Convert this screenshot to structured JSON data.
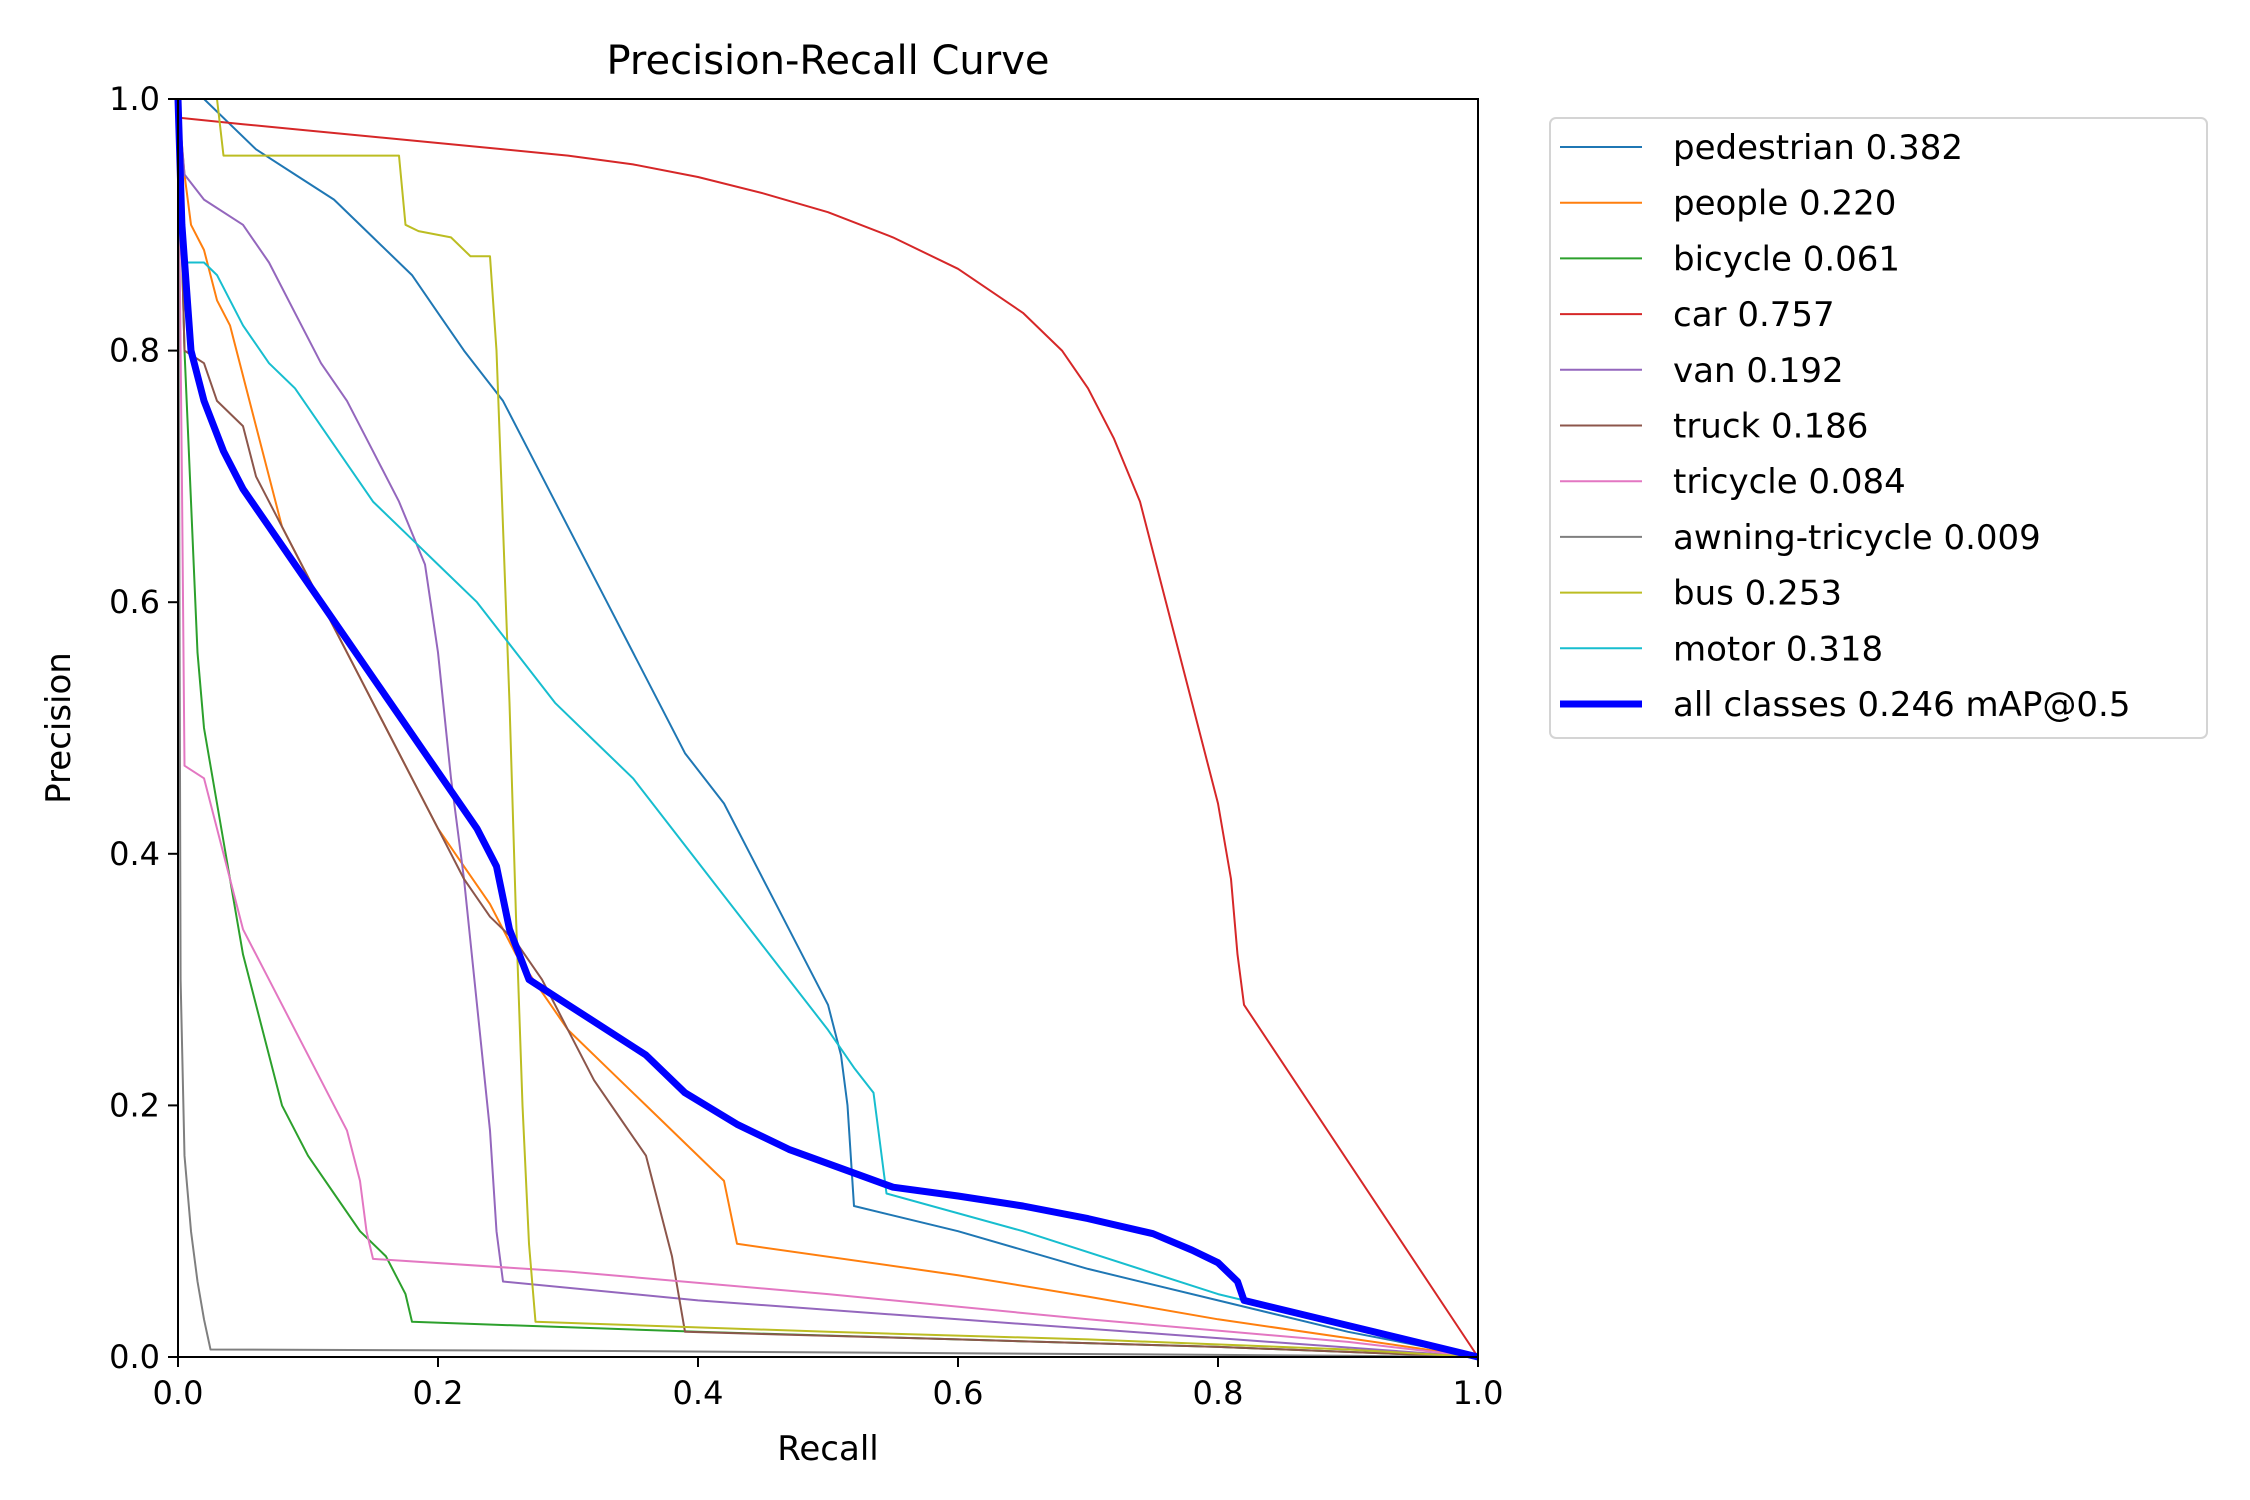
{
  "chart_data": {
    "type": "line",
    "title": "Precision-Recall Curve",
    "xlabel": "Recall",
    "ylabel": "Precision",
    "xlim": [
      0,
      1
    ],
    "ylim": [
      0,
      1
    ],
    "xticks": [
      "0.0",
      "0.2",
      "0.4",
      "0.6",
      "0.8",
      "1.0"
    ],
    "yticks": [
      "0.0",
      "0.2",
      "0.4",
      "0.6",
      "0.8",
      "1.0"
    ],
    "legend_position": "outside-right-top",
    "grid": false,
    "series": [
      {
        "name": "pedestrian 0.382",
        "color": "#1f77b4",
        "points": [
          [
            0.0,
            1.0
          ],
          [
            0.02,
            1.0
          ],
          [
            0.04,
            0.98
          ],
          [
            0.06,
            0.96
          ],
          [
            0.09,
            0.94
          ],
          [
            0.12,
            0.92
          ],
          [
            0.15,
            0.89
          ],
          [
            0.18,
            0.86
          ],
          [
            0.2,
            0.83
          ],
          [
            0.22,
            0.8
          ],
          [
            0.25,
            0.76
          ],
          [
            0.27,
            0.72
          ],
          [
            0.29,
            0.68
          ],
          [
            0.31,
            0.64
          ],
          [
            0.33,
            0.6
          ],
          [
            0.35,
            0.56
          ],
          [
            0.37,
            0.52
          ],
          [
            0.39,
            0.48
          ],
          [
            0.42,
            0.44
          ],
          [
            0.44,
            0.4
          ],
          [
            0.46,
            0.36
          ],
          [
            0.48,
            0.32
          ],
          [
            0.5,
            0.28
          ],
          [
            0.51,
            0.24
          ],
          [
            0.515,
            0.2
          ],
          [
            0.52,
            0.12
          ],
          [
            0.6,
            0.1
          ],
          [
            0.7,
            0.07
          ],
          [
            0.8,
            0.045
          ],
          [
            0.9,
            0.02
          ],
          [
            1.0,
            0.0
          ]
        ]
      },
      {
        "name": "people 0.220",
        "color": "#ff7f0e",
        "points": [
          [
            0.0,
            1.0
          ],
          [
            0.005,
            0.94
          ],
          [
            0.01,
            0.9
          ],
          [
            0.02,
            0.88
          ],
          [
            0.03,
            0.84
          ],
          [
            0.04,
            0.82
          ],
          [
            0.05,
            0.78
          ],
          [
            0.06,
            0.74
          ],
          [
            0.07,
            0.7
          ],
          [
            0.08,
            0.66
          ],
          [
            0.1,
            0.62
          ],
          [
            0.12,
            0.58
          ],
          [
            0.14,
            0.54
          ],
          [
            0.16,
            0.5
          ],
          [
            0.18,
            0.46
          ],
          [
            0.2,
            0.42
          ],
          [
            0.22,
            0.39
          ],
          [
            0.24,
            0.36
          ],
          [
            0.26,
            0.32
          ],
          [
            0.28,
            0.29
          ],
          [
            0.3,
            0.26
          ],
          [
            0.33,
            0.23
          ],
          [
            0.36,
            0.2
          ],
          [
            0.39,
            0.17
          ],
          [
            0.42,
            0.14
          ],
          [
            0.43,
            0.09
          ],
          [
            0.6,
            0.065
          ],
          [
            0.7,
            0.048
          ],
          [
            0.8,
            0.03
          ],
          [
            0.9,
            0.015
          ],
          [
            1.0,
            0.0
          ]
        ]
      },
      {
        "name": "bicycle 0.061",
        "color": "#2ca02c",
        "points": [
          [
            0.0,
            1.0
          ],
          [
            0.005,
            0.8
          ],
          [
            0.01,
            0.68
          ],
          [
            0.015,
            0.56
          ],
          [
            0.02,
            0.5
          ],
          [
            0.03,
            0.44
          ],
          [
            0.04,
            0.38
          ],
          [
            0.05,
            0.32
          ],
          [
            0.06,
            0.28
          ],
          [
            0.07,
            0.24
          ],
          [
            0.08,
            0.2
          ],
          [
            0.1,
            0.16
          ],
          [
            0.12,
            0.13
          ],
          [
            0.14,
            0.1
          ],
          [
            0.16,
            0.08
          ],
          [
            0.175,
            0.05
          ],
          [
            0.18,
            0.028
          ],
          [
            0.4,
            0.02
          ],
          [
            0.6,
            0.014
          ],
          [
            0.8,
            0.008
          ],
          [
            1.0,
            0.0
          ]
        ]
      },
      {
        "name": "car 0.757",
        "color": "#d62728",
        "points": [
          [
            0.0,
            1.0
          ],
          [
            0.002,
            0.985
          ],
          [
            0.05,
            0.98
          ],
          [
            0.1,
            0.975
          ],
          [
            0.15,
            0.97
          ],
          [
            0.2,
            0.965
          ],
          [
            0.25,
            0.96
          ],
          [
            0.3,
            0.955
          ],
          [
            0.35,
            0.948
          ],
          [
            0.4,
            0.938
          ],
          [
            0.45,
            0.925
          ],
          [
            0.5,
            0.91
          ],
          [
            0.55,
            0.89
          ],
          [
            0.6,
            0.865
          ],
          [
            0.65,
            0.83
          ],
          [
            0.68,
            0.8
          ],
          [
            0.7,
            0.77
          ],
          [
            0.72,
            0.73
          ],
          [
            0.74,
            0.68
          ],
          [
            0.76,
            0.6
          ],
          [
            0.78,
            0.52
          ],
          [
            0.8,
            0.44
          ],
          [
            0.81,
            0.38
          ],
          [
            0.815,
            0.32
          ],
          [
            0.82,
            0.28
          ],
          [
            1.0,
            0.0
          ]
        ]
      },
      {
        "name": "van 0.192",
        "color": "#9467bd",
        "points": [
          [
            0.0,
            1.0
          ],
          [
            0.005,
            0.94
          ],
          [
            0.02,
            0.92
          ],
          [
            0.05,
            0.9
          ],
          [
            0.07,
            0.87
          ],
          [
            0.09,
            0.83
          ],
          [
            0.11,
            0.79
          ],
          [
            0.13,
            0.76
          ],
          [
            0.15,
            0.72
          ],
          [
            0.17,
            0.68
          ],
          [
            0.19,
            0.63
          ],
          [
            0.2,
            0.56
          ],
          [
            0.21,
            0.46
          ],
          [
            0.22,
            0.38
          ],
          [
            0.23,
            0.28
          ],
          [
            0.24,
            0.18
          ],
          [
            0.245,
            0.1
          ],
          [
            0.25,
            0.06
          ],
          [
            0.4,
            0.045
          ],
          [
            0.6,
            0.03
          ],
          [
            0.8,
            0.015
          ],
          [
            1.0,
            0.0
          ]
        ]
      },
      {
        "name": "truck 0.186",
        "color": "#8c564b",
        "points": [
          [
            0.0,
            1.0
          ],
          [
            0.005,
            0.8
          ],
          [
            0.02,
            0.79
          ],
          [
            0.03,
            0.76
          ],
          [
            0.05,
            0.74
          ],
          [
            0.06,
            0.7
          ],
          [
            0.08,
            0.66
          ],
          [
            0.1,
            0.62
          ],
          [
            0.12,
            0.58
          ],
          [
            0.14,
            0.54
          ],
          [
            0.16,
            0.5
          ],
          [
            0.18,
            0.46
          ],
          [
            0.2,
            0.42
          ],
          [
            0.22,
            0.38
          ],
          [
            0.24,
            0.35
          ],
          [
            0.26,
            0.33
          ],
          [
            0.28,
            0.3
          ],
          [
            0.3,
            0.26
          ],
          [
            0.32,
            0.22
          ],
          [
            0.34,
            0.19
          ],
          [
            0.36,
            0.16
          ],
          [
            0.37,
            0.12
          ],
          [
            0.38,
            0.08
          ],
          [
            0.39,
            0.02
          ],
          [
            0.6,
            0.014
          ],
          [
            0.8,
            0.008
          ],
          [
            1.0,
            0.0
          ]
        ]
      },
      {
        "name": "tricycle 0.084",
        "color": "#e377c2",
        "points": [
          [
            0.0,
            1.0
          ],
          [
            0.003,
            0.7
          ],
          [
            0.005,
            0.47
          ],
          [
            0.02,
            0.46
          ],
          [
            0.03,
            0.42
          ],
          [
            0.04,
            0.38
          ],
          [
            0.05,
            0.34
          ],
          [
            0.07,
            0.3
          ],
          [
            0.09,
            0.26
          ],
          [
            0.1,
            0.24
          ],
          [
            0.12,
            0.2
          ],
          [
            0.13,
            0.18
          ],
          [
            0.14,
            0.14
          ],
          [
            0.145,
            0.1
          ],
          [
            0.15,
            0.078
          ],
          [
            0.3,
            0.068
          ],
          [
            0.5,
            0.05
          ],
          [
            0.7,
            0.03
          ],
          [
            0.9,
            0.012
          ],
          [
            1.0,
            0.0
          ]
        ]
      },
      {
        "name": "awning-tricycle 0.009",
        "color": "#7f7f7f",
        "points": [
          [
            0.0,
            1.0
          ],
          [
            0.002,
            0.3
          ],
          [
            0.005,
            0.16
          ],
          [
            0.01,
            0.1
          ],
          [
            0.015,
            0.06
          ],
          [
            0.02,
            0.03
          ],
          [
            0.025,
            0.006
          ],
          [
            0.3,
            0.005
          ],
          [
            0.6,
            0.003
          ],
          [
            0.9,
            0.001
          ],
          [
            1.0,
            0.0
          ]
        ]
      },
      {
        "name": "bus 0.253",
        "color": "#bcbd22",
        "points": [
          [
            0.0,
            1.0
          ],
          [
            0.03,
            1.0
          ],
          [
            0.035,
            0.955
          ],
          [
            0.17,
            0.955
          ],
          [
            0.175,
            0.9
          ],
          [
            0.185,
            0.895
          ],
          [
            0.21,
            0.89
          ],
          [
            0.225,
            0.875
          ],
          [
            0.24,
            0.875
          ],
          [
            0.245,
            0.8
          ],
          [
            0.25,
            0.66
          ],
          [
            0.255,
            0.52
          ],
          [
            0.26,
            0.35
          ],
          [
            0.265,
            0.2
          ],
          [
            0.27,
            0.09
          ],
          [
            0.275,
            0.028
          ],
          [
            0.5,
            0.02
          ],
          [
            0.7,
            0.014
          ],
          [
            0.9,
            0.006
          ],
          [
            1.0,
            0.0
          ]
        ]
      },
      {
        "name": "motor 0.318",
        "color": "#17becf",
        "points": [
          [
            0.0,
            1.0
          ],
          [
            0.005,
            0.87
          ],
          [
            0.02,
            0.87
          ],
          [
            0.03,
            0.86
          ],
          [
            0.05,
            0.82
          ],
          [
            0.07,
            0.79
          ],
          [
            0.09,
            0.77
          ],
          [
            0.11,
            0.74
          ],
          [
            0.13,
            0.71
          ],
          [
            0.15,
            0.68
          ],
          [
            0.18,
            0.65
          ],
          [
            0.2,
            0.63
          ],
          [
            0.23,
            0.6
          ],
          [
            0.26,
            0.56
          ],
          [
            0.29,
            0.52
          ],
          [
            0.32,
            0.49
          ],
          [
            0.35,
            0.46
          ],
          [
            0.38,
            0.42
          ],
          [
            0.41,
            0.38
          ],
          [
            0.44,
            0.34
          ],
          [
            0.47,
            0.3
          ],
          [
            0.5,
            0.26
          ],
          [
            0.52,
            0.23
          ],
          [
            0.535,
            0.21
          ],
          [
            0.54,
            0.17
          ],
          [
            0.545,
            0.13
          ],
          [
            0.65,
            0.1
          ],
          [
            0.8,
            0.05
          ],
          [
            0.9,
            0.025
          ],
          [
            1.0,
            0.0
          ]
        ]
      },
      {
        "name": "all classes 0.246 mAP@0.5",
        "color": "#0000ff",
        "thick": true,
        "points": [
          [
            0.0,
            1.0
          ],
          [
            0.003,
            0.9
          ],
          [
            0.01,
            0.8
          ],
          [
            0.02,
            0.76
          ],
          [
            0.035,
            0.72
          ],
          [
            0.05,
            0.69
          ],
          [
            0.07,
            0.66
          ],
          [
            0.09,
            0.63
          ],
          [
            0.11,
            0.6
          ],
          [
            0.13,
            0.57
          ],
          [
            0.15,
            0.54
          ],
          [
            0.17,
            0.51
          ],
          [
            0.19,
            0.48
          ],
          [
            0.21,
            0.45
          ],
          [
            0.23,
            0.42
          ],
          [
            0.245,
            0.39
          ],
          [
            0.255,
            0.34
          ],
          [
            0.27,
            0.3
          ],
          [
            0.3,
            0.28
          ],
          [
            0.33,
            0.26
          ],
          [
            0.36,
            0.24
          ],
          [
            0.39,
            0.21
          ],
          [
            0.43,
            0.185
          ],
          [
            0.47,
            0.165
          ],
          [
            0.51,
            0.15
          ],
          [
            0.55,
            0.135
          ],
          [
            0.6,
            0.128
          ],
          [
            0.65,
            0.12
          ],
          [
            0.7,
            0.11
          ],
          [
            0.75,
            0.098
          ],
          [
            0.78,
            0.085
          ],
          [
            0.8,
            0.075
          ],
          [
            0.815,
            0.06
          ],
          [
            0.82,
            0.045
          ],
          [
            0.9,
            0.025
          ],
          [
            1.0,
            0.0
          ]
        ]
      }
    ]
  }
}
